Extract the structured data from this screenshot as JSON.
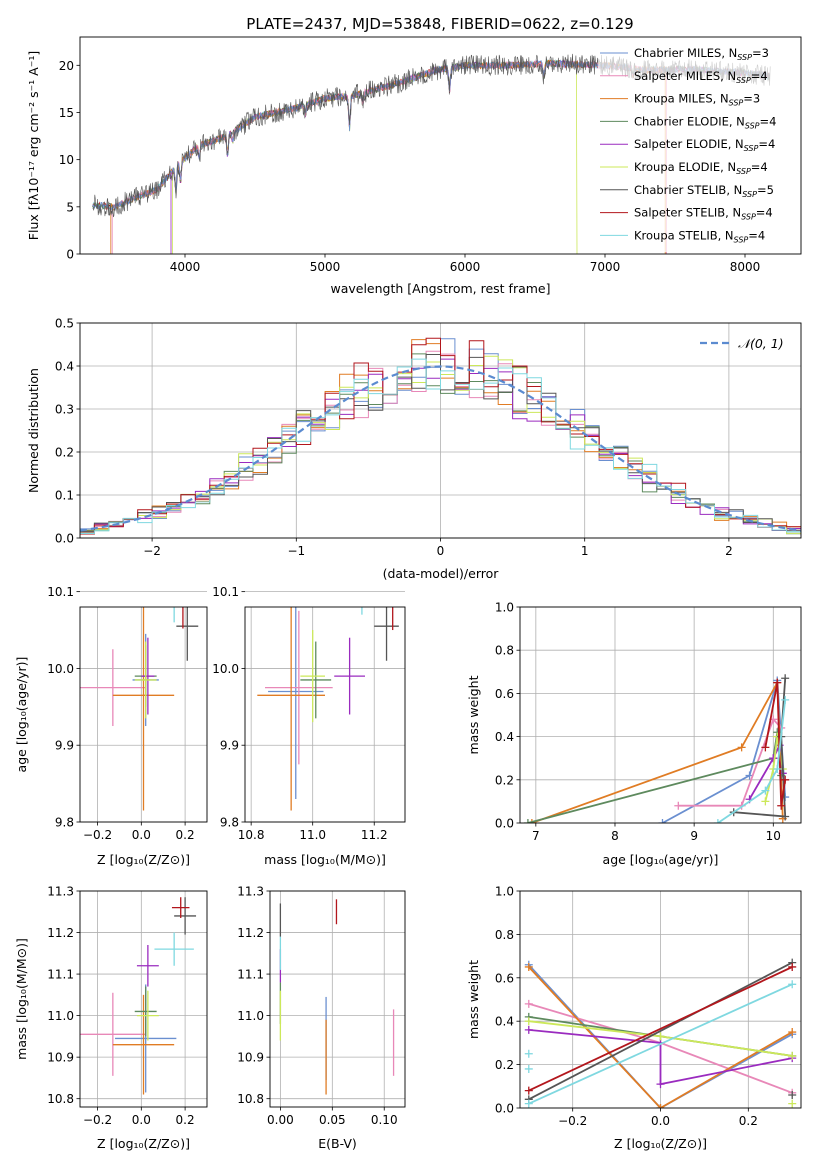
{
  "figure": {
    "title": "PLATE=2437, MJD=53848, FIBERID=0622, z=0.129"
  },
  "model_colors": {
    "Chabrier MILES": "#6a8fd0",
    "Salpeter MILES": "#e888b8",
    "Kroupa MILES": "#e07c24",
    "Chabrier ELODIE": "#5e8a5e",
    "Salpeter ELODIE": "#9a2bbf",
    "Kroupa ELODIE": "#cce85a",
    "Chabrier STELIB": "#555555",
    "Salpeter STELIB": "#b2161c",
    "Kroupa STELIB": "#7fd8e0"
  },
  "chart_data": [
    {
      "id": "spectrum",
      "type": "line",
      "xlabel": "wavelength [Angstrom, rest frame]",
      "ylabel": "Flux [fλ10⁻¹⁷ erg cm⁻² s⁻¹ A⁻¹]",
      "xlim": [
        3250,
        8400
      ],
      "ylim": [
        0,
        23
      ],
      "xticks": [
        4000,
        5000,
        6000,
        7000,
        8000
      ],
      "yticks": [
        0,
        5,
        10,
        15,
        20
      ],
      "grid": false,
      "legend_position": "top-right",
      "data_range": [
        3340,
        8180
      ],
      "flux_continuum": [
        [
          3340,
          5.2
        ],
        [
          3500,
          5.0
        ],
        [
          3650,
          6.0
        ],
        [
          3800,
          6.8
        ],
        [
          3950,
          9.5
        ],
        [
          4100,
          11.5
        ],
        [
          4300,
          12.5
        ],
        [
          4500,
          14.5
        ],
        [
          4800,
          15.5
        ],
        [
          5000,
          16.5
        ],
        [
          5200,
          16.8
        ],
        [
          5500,
          18.0
        ],
        [
          5800,
          19.5
        ],
        [
          6000,
          20.0
        ],
        [
          6300,
          20.0
        ],
        [
          6600,
          20.2
        ],
        [
          7000,
          20.0
        ],
        [
          7300,
          19.5
        ],
        [
          7600,
          19.6
        ],
        [
          8000,
          19.2
        ],
        [
          8180,
          18.8
        ]
      ],
      "absorption_features": [
        [
          3934,
          2.5
        ],
        [
          3968,
          2.0
        ],
        [
          4102,
          1.2
        ],
        [
          4304,
          2.0
        ],
        [
          4340,
          1.0
        ],
        [
          4861,
          1.0
        ],
        [
          5175,
          3.5
        ],
        [
          5270,
          1.2
        ],
        [
          5890,
          2.5
        ],
        [
          6563,
          1.5
        ],
        [
          7200,
          0.8
        ]
      ],
      "truncations": {
        "Salpeter MILES": 3480,
        "Kroupa MILES": 3470,
        "Kroupa ELODIE": 3910,
        "Salpeter ELODIE": 3900,
        "Kroupa ELODIE_end": 6800,
        "Kroupa MILES_end": 7430,
        "Salpeter MILES_end": 7440
      },
      "series": [
        {
          "name": "Chabrier MILES, N_SSP=3",
          "label": "Chabrier MILES, N",
          "ssp": "=3"
        },
        {
          "name": "Salpeter MILES, N_SSP=4",
          "label": "Salpeter MILES, N",
          "ssp": "=4"
        },
        {
          "name": "Kroupa MILES, N_SSP=3",
          "label": "Kroupa MILES, N",
          "ssp": "=3"
        },
        {
          "name": "Chabrier ELODIE, N_SSP=4",
          "label": "Chabrier ELODIE, N",
          "ssp": "=4"
        },
        {
          "name": "Salpeter ELODIE, N_SSP=4",
          "label": "Salpeter ELODIE, N",
          "ssp": "=4"
        },
        {
          "name": "Kroupa ELODIE, N_SSP=4",
          "label": "Kroupa ELODIE, N",
          "ssp": "=4"
        },
        {
          "name": "Chabrier STELIB, N_SSP=5",
          "label": "Chabrier STELIB, N",
          "ssp": "=5"
        },
        {
          "name": "Salpeter STELIB, N_SSP=4",
          "label": "Salpeter STELIB, N",
          "ssp": "=4"
        },
        {
          "name": "Kroupa STELIB, N_SSP=4",
          "label": "Kroupa STELIB, N",
          "ssp": "=4"
        }
      ],
      "ssp_subscript": "SSP"
    },
    {
      "id": "residuals",
      "type": "line",
      "xlabel": "(data-model)/error",
      "ylabel": "Normed distribution",
      "xlim": [
        -2.5,
        2.5
      ],
      "ylim": [
        0,
        0.5
      ],
      "xticks": [
        -2,
        -1,
        0,
        1,
        2
      ],
      "yticks": [
        0.0,
        0.1,
        0.2,
        0.3,
        0.4,
        0.5
      ],
      "grid": true,
      "legend_position": "top-right",
      "reference_curve": "𝒩(0, 1)",
      "bin_width": 0.1
    },
    {
      "id": "age_vs_Z",
      "type": "scatter",
      "xlabel": "Z [log₁₀(Z/Z⊙)]",
      "ylabel": "age  [log₁₀(age/yr)]",
      "xlim": [
        -0.28,
        0.3
      ],
      "ylim": [
        9.8,
        10.08
      ],
      "xticks": [
        -0.2,
        0.0,
        0.2
      ],
      "yticks": [
        9.8,
        9.9,
        10.0,
        10.1
      ],
      "grid": true,
      "points": [
        {
          "model": "Chabrier MILES",
          "x": 0.02,
          "y": 9.985,
          "xerr": 0.06,
          "yerr": 0.06
        },
        {
          "model": "Salpeter MILES",
          "x": -0.13,
          "y": 9.975,
          "xerr": 0.15,
          "yerr": 0.05
        },
        {
          "model": "Kroupa MILES",
          "x": 0.01,
          "y": 9.965,
          "xerr": 0.14,
          "yerr": 0.15
        },
        {
          "model": "Chabrier ELODIE",
          "x": 0.02,
          "y": 9.99,
          "xerr": 0.05,
          "yerr": 0.04
        },
        {
          "model": "Salpeter ELODIE",
          "x": 0.03,
          "y": 9.99,
          "xerr": 0.03,
          "yerr": 0.05
        },
        {
          "model": "Kroupa ELODIE",
          "x": 0.02,
          "y": 9.985,
          "xerr": 0.05,
          "yerr": 0.05
        },
        {
          "model": "Chabrier STELIB",
          "x": 0.21,
          "y": 10.055,
          "xerr": 0.05,
          "yerr": 0.045
        },
        {
          "model": "Salpeter STELIB",
          "x": 0.19,
          "y": 10.112,
          "xerr": 0.04,
          "yerr": 0.06
        },
        {
          "model": "Kroupa STELIB",
          "x": 0.15,
          "y": 10.12,
          "xerr": 0.09,
          "yerr": 0.06
        }
      ]
    },
    {
      "id": "age_vs_mass",
      "type": "scatter",
      "xlabel": "mass [log₁₀(M/M⊙)]",
      "ylabel": "",
      "xlim": [
        10.78,
        11.3
      ],
      "ylim": [
        9.8,
        10.08
      ],
      "xticks": [
        10.8,
        11.0,
        11.2
      ],
      "yticks": [
        9.8,
        9.9,
        10.0,
        10.1
      ],
      "grid": true,
      "points": [
        {
          "model": "Chabrier MILES",
          "x": 10.945,
          "y": 9.97,
          "xerr": 0.09,
          "yerr": 0.14
        },
        {
          "model": "Salpeter MILES",
          "x": 10.955,
          "y": 9.975,
          "xerr": 0.11,
          "yerr": 0.1
        },
        {
          "model": "Kroupa MILES",
          "x": 10.93,
          "y": 9.965,
          "xerr": 0.11,
          "yerr": 0.15
        },
        {
          "model": "Chabrier ELODIE",
          "x": 11.01,
          "y": 9.985,
          "xerr": 0.05,
          "yerr": 0.05
        },
        {
          "model": "Salpeter ELODIE",
          "x": 11.12,
          "y": 9.99,
          "xerr": 0.05,
          "yerr": 0.05
        },
        {
          "model": "Kroupa ELODIE",
          "x": 11.0,
          "y": 9.99,
          "xerr": 0.04,
          "yerr": 0.06
        },
        {
          "model": "Chabrier STELIB",
          "x": 11.24,
          "y": 10.055,
          "xerr": 0.04,
          "yerr": 0.045
        },
        {
          "model": "Salpeter STELIB",
          "x": 11.26,
          "y": 10.11,
          "xerr": 0.02,
          "yerr": 0.06
        },
        {
          "model": "Kroupa STELIB",
          "x": 11.16,
          "y": 10.12,
          "xerr": 0.03,
          "yerr": 0.05
        }
      ]
    },
    {
      "id": "weight_vs_age",
      "type": "line",
      "xlabel": "age  [log₁₀(age/yr)]",
      "ylabel": "mass weight",
      "xlim": [
        6.8,
        10.35
      ],
      "ylim": [
        0,
        1
      ],
      "xticks": [
        7,
        8,
        9,
        10
      ],
      "yticks": [
        0.0,
        0.2,
        0.4,
        0.6,
        0.8,
        1.0
      ],
      "grid": true,
      "series": [
        {
          "model": "Chabrier MILES",
          "points": [
            [
              8.6,
              0.0
            ],
            [
              9.7,
              0.22
            ],
            [
              10.05,
              0.66
            ],
            [
              10.15,
              0.12
            ]
          ]
        },
        {
          "model": "Salpeter MILES",
          "points": [
            [
              8.8,
              0.08
            ],
            [
              9.6,
              0.08
            ],
            [
              10.0,
              0.48
            ],
            [
              10.1,
              0.44
            ]
          ]
        },
        {
          "model": "Kroupa MILES",
          "points": [
            [
              6.95,
              0.0
            ],
            [
              9.6,
              0.35
            ],
            [
              10.05,
              0.65
            ],
            [
              10.12,
              0.02
            ]
          ]
        },
        {
          "model": "Chabrier ELODIE",
          "points": [
            [
              6.9,
              0.0
            ],
            [
              10.0,
              0.3
            ],
            [
              10.05,
              0.42
            ],
            [
              10.1,
              0.22
            ]
          ]
        },
        {
          "model": "Salpeter ELODIE",
          "points": [
            [
              9.7,
              0.11
            ],
            [
              10.0,
              0.3
            ],
            [
              10.08,
              0.36
            ],
            [
              10.12,
              0.23
            ]
          ]
        },
        {
          "model": "Kroupa ELODIE",
          "points": [
            [
              9.9,
              0.1
            ],
            [
              10.0,
              0.25
            ],
            [
              10.05,
              0.4
            ],
            [
              10.12,
              0.25
            ]
          ]
        },
        {
          "model": "Chabrier STELIB",
          "points": [
            [
              9.5,
              0.05
            ],
            [
              10.15,
              0.03
            ],
            [
              10.1,
              0.4
            ],
            [
              10.15,
              0.67
            ]
          ]
        },
        {
          "model": "Salpeter STELIB",
          "points": [
            [
              9.9,
              0.35
            ],
            [
              10.05,
              0.65
            ],
            [
              10.1,
              0.08
            ],
            [
              10.15,
              0.2
            ]
          ]
        },
        {
          "model": "Kroupa STELIB",
          "points": [
            [
              9.3,
              0.0
            ],
            [
              9.9,
              0.15
            ],
            [
              10.05,
              0.25
            ],
            [
              10.15,
              0.57
            ]
          ]
        }
      ]
    },
    {
      "id": "mass_vs_Z",
      "type": "scatter",
      "xlabel": "Z [log₁₀(Z/Z⊙)]",
      "ylabel": "mass [log₁₀(M/M⊙)]",
      "xlim": [
        -0.28,
        0.3
      ],
      "ylim": [
        10.78,
        11.3
      ],
      "xticks": [
        -0.2,
        0.0,
        0.2
      ],
      "yticks": [
        10.8,
        10.9,
        11.0,
        11.1,
        11.2,
        11.3
      ],
      "grid": true,
      "points": [
        {
          "model": "Chabrier MILES",
          "x": 0.02,
          "y": 10.945,
          "xerr": 0.14,
          "yerr": 0.13
        },
        {
          "model": "Salpeter MILES",
          "x": -0.13,
          "y": 10.955,
          "xerr": 0.15,
          "yerr": 0.1
        },
        {
          "model": "Kroupa MILES",
          "x": 0.01,
          "y": 10.93,
          "xerr": 0.14,
          "yerr": 0.12
        },
        {
          "model": "Chabrier ELODIE",
          "x": 0.02,
          "y": 11.01,
          "xerr": 0.05,
          "yerr": 0.06
        },
        {
          "model": "Salpeter ELODIE",
          "x": 0.03,
          "y": 11.12,
          "xerr": 0.05,
          "yerr": 0.05
        },
        {
          "model": "Kroupa ELODIE",
          "x": 0.03,
          "y": 11.0,
          "xerr": 0.05,
          "yerr": 0.06
        },
        {
          "model": "Chabrier STELIB",
          "x": 0.2,
          "y": 11.24,
          "xerr": 0.05,
          "yerr": 0.045
        },
        {
          "model": "Salpeter STELIB",
          "x": 0.18,
          "y": 11.26,
          "xerr": 0.04,
          "yerr": 0.025
        },
        {
          "model": "Kroupa STELIB",
          "x": 0.15,
          "y": 11.16,
          "xerr": 0.09,
          "yerr": 0.04
        }
      ]
    },
    {
      "id": "mass_vs_ebv",
      "type": "scatter",
      "xlabel": "E(B-V)",
      "ylabel": "",
      "xlim": [
        -0.01,
        0.12
      ],
      "ylim": [
        10.78,
        11.3
      ],
      "xticks": [
        0.0,
        0.05,
        0.1
      ],
      "yticks": [
        10.8,
        10.9,
        11.0,
        11.1,
        11.2,
        11.3
      ],
      "grid": true,
      "points": [
        {
          "model": "Chabrier MILES",
          "x": 0.044,
          "y": 10.945,
          "xerr": 0.0,
          "yerr": 0.1
        },
        {
          "model": "Salpeter MILES",
          "x": 0.109,
          "y": 10.935,
          "xerr": 0.0,
          "yerr": 0.08
        },
        {
          "model": "Kroupa MILES",
          "x": 0.044,
          "y": 10.9,
          "xerr": 0.0,
          "yerr": 0.09
        },
        {
          "model": "Chabrier ELODIE",
          "x": 0.0,
          "y": 11.03,
          "xerr": 0.0,
          "yerr": 0.05
        },
        {
          "model": "Salpeter ELODIE",
          "x": 0.0,
          "y": 11.12,
          "xerr": 0.0,
          "yerr": 0.04
        },
        {
          "model": "Kroupa ELODIE",
          "x": 0.0,
          "y": 11.0,
          "xerr": 0.0,
          "yerr": 0.06
        },
        {
          "model": "Chabrier STELIB",
          "x": 0.0,
          "y": 11.23,
          "xerr": 0.0,
          "yerr": 0.04
        },
        {
          "model": "Salpeter STELIB",
          "x": 0.054,
          "y": 11.25,
          "xerr": 0.0,
          "yerr": 0.03
        },
        {
          "model": "Kroupa STELIB",
          "x": 0.0,
          "y": 11.15,
          "xerr": 0.0,
          "yerr": 0.04
        }
      ]
    },
    {
      "id": "weight_vs_Z",
      "type": "line",
      "xlabel": "Z [log₁₀(Z/Z⊙)]",
      "ylabel": "mass weight",
      "xlim": [
        -0.32,
        0.32
      ],
      "ylim": [
        0,
        1
      ],
      "xticks": [
        -0.2,
        0.0,
        0.2
      ],
      "yticks": [
        0.0,
        0.2,
        0.4,
        0.6,
        0.8,
        1.0
      ],
      "grid": true,
      "series": [
        {
          "model": "Chabrier MILES",
          "points": [
            [
              -0.3,
              0.66
            ],
            [
              0.0,
              0.0
            ],
            [
              0.3,
              0.34
            ]
          ]
        },
        {
          "model": "Salpeter MILES",
          "points": [
            [
              -0.3,
              0.48
            ],
            [
              0.0,
              0.3
            ],
            [
              0.3,
              0.07
            ]
          ]
        },
        {
          "model": "Kroupa MILES",
          "points": [
            [
              -0.3,
              0.65
            ],
            [
              0.0,
              0.0
            ],
            [
              0.3,
              0.35
            ]
          ]
        },
        {
          "model": "Chabrier ELODIE",
          "points": [
            [
              -0.3,
              0.42
            ],
            [
              0.0,
              0.33
            ],
            [
              0.3,
              0.24
            ]
          ]
        },
        {
          "model": "Salpeter ELODIE",
          "points": [
            [
              -0.3,
              0.36
            ],
            [
              0.0,
              0.3
            ],
            [
              0.0,
              0.11
            ],
            [
              0.3,
              0.23
            ]
          ]
        },
        {
          "model": "Kroupa ELODIE",
          "points": [
            [
              -0.3,
              0.4
            ],
            [
              0.0,
              0.33
            ],
            [
              0.3,
              0.24
            ]
          ]
        },
        {
          "model": "Chabrier STELIB",
          "points": [
            [
              -0.3,
              0.04
            ],
            [
              0.3,
              0.67
            ]
          ]
        },
        {
          "model": "Salpeter STELIB",
          "points": [
            [
              -0.3,
              0.08
            ],
            [
              0.3,
              0.65
            ]
          ]
        },
        {
          "model": "Kroupa STELIB",
          "points": [
            [
              -0.3,
              0.02
            ],
            [
              0.3,
              0.57
            ]
          ]
        }
      ],
      "extra_markers": [
        {
          "model": "Kroupa STELIB",
          "x": -0.3,
          "y": 0.25
        },
        {
          "model": "Kroupa STELIB",
          "x": -0.3,
          "y": 0.18
        },
        {
          "model": "Kroupa ELODIE",
          "x": 0.3,
          "y": 0.02
        },
        {
          "model": "Chabrier STELIB",
          "x": 0.3,
          "y": 0.06
        }
      ]
    }
  ]
}
